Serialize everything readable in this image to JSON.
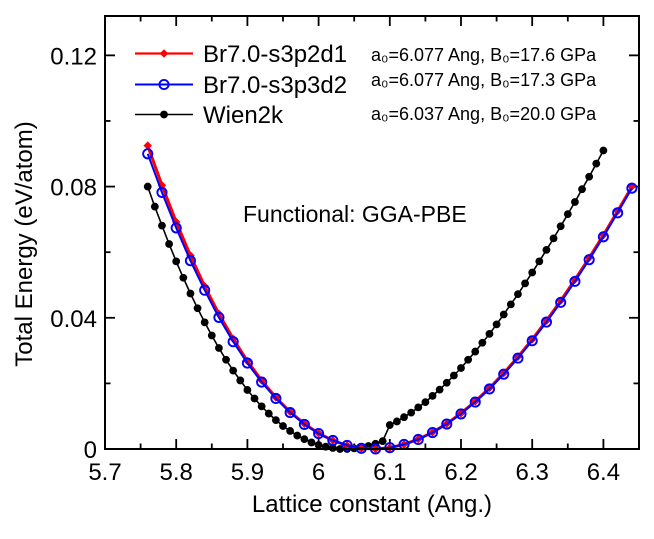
{
  "chart_data": {
    "type": "line",
    "title": "",
    "xlabel": "Lattice constant (Ang.)",
    "ylabel": "Total Energy (eV/atom)",
    "xlim": [
      5.7,
      6.45
    ],
    "ylim": [
      0,
      0.132
    ],
    "grid": false,
    "legend_position": "top-left-inside",
    "center_annotation": "Functional: GGA-PBE",
    "x_axis": {
      "major": [
        5.7,
        5.8,
        5.9,
        6.0,
        6.1,
        6.2,
        6.3,
        6.4
      ],
      "labels": [
        "5.7",
        "5.8",
        "5.9",
        "6",
        "6.1",
        "6.2",
        "6.3",
        "6.4"
      ],
      "minor": [
        5.75,
        5.85,
        5.95,
        6.05,
        6.15,
        6.25,
        6.35,
        6.45
      ]
    },
    "y_axis": {
      "major": [
        0,
        0.04,
        0.08,
        0.12
      ],
      "labels": [
        "0",
        "0.04",
        "0.08",
        "0.12"
      ],
      "minor": [
        0.02,
        0.06,
        0.1
      ]
    },
    "series": [
      {
        "name": "Br7.0-s3p2d1",
        "color": "#ff0000",
        "marker": "diamond-filled",
        "annotation": "a₀=6.077 Ang, B₀=17.6 GPa",
        "points": [
          [
            5.76,
            0.0925
          ],
          [
            5.78,
            0.0804
          ],
          [
            5.8,
            0.0692
          ],
          [
            5.82,
            0.059
          ],
          [
            5.84,
            0.0496
          ],
          [
            5.86,
            0.0412
          ],
          [
            5.88,
            0.0336
          ],
          [
            5.9,
            0.0268
          ],
          [
            5.92,
            0.0209
          ],
          [
            5.94,
            0.0157
          ],
          [
            5.96,
            0.0113
          ],
          [
            5.98,
            0.0077
          ],
          [
            6.0,
            0.0048
          ],
          [
            6.02,
            0.0026
          ],
          [
            6.04,
            0.0011
          ],
          [
            6.06,
            0.0002
          ],
          [
            6.08,
            0.0
          ],
          [
            6.1,
            0.0004
          ],
          [
            6.12,
            0.0014
          ],
          [
            6.14,
            0.003
          ],
          [
            6.16,
            0.0051
          ],
          [
            6.18,
            0.0077
          ],
          [
            6.2,
            0.0109
          ],
          [
            6.22,
            0.0145
          ],
          [
            6.24,
            0.0186
          ],
          [
            6.26,
            0.0231
          ],
          [
            6.28,
            0.0281
          ],
          [
            6.3,
            0.0334
          ],
          [
            6.32,
            0.0391
          ],
          [
            6.34,
            0.0452
          ],
          [
            6.36,
            0.0516
          ],
          [
            6.38,
            0.0583
          ],
          [
            6.4,
            0.0652
          ],
          [
            6.42,
            0.0725
          ],
          [
            6.44,
            0.08
          ]
        ]
      },
      {
        "name": "Br7.0-s3p3d2",
        "color": "#0000ff",
        "marker": "circle-open",
        "annotation": "a₀=6.077 Ang, B₀=17.3 GPa",
        "points": [
          [
            5.76,
            0.09
          ],
          [
            5.78,
            0.0782
          ],
          [
            5.8,
            0.0674
          ],
          [
            5.82,
            0.0574
          ],
          [
            5.84,
            0.0484
          ],
          [
            5.86,
            0.0401
          ],
          [
            5.88,
            0.0327
          ],
          [
            5.9,
            0.0262
          ],
          [
            5.92,
            0.0204
          ],
          [
            5.94,
            0.0154
          ],
          [
            5.96,
            0.0111
          ],
          [
            5.98,
            0.0075
          ],
          [
            6.0,
            0.0047
          ],
          [
            6.02,
            0.0026
          ],
          [
            6.04,
            0.0011
          ],
          [
            6.06,
            0.0002
          ],
          [
            6.08,
            0.0
          ],
          [
            6.1,
            0.0004
          ],
          [
            6.12,
            0.0014
          ],
          [
            6.14,
            0.0029
          ],
          [
            6.16,
            0.005
          ],
          [
            6.18,
            0.0076
          ],
          [
            6.2,
            0.0107
          ],
          [
            6.22,
            0.0143
          ],
          [
            6.24,
            0.0183
          ],
          [
            6.26,
            0.0228
          ],
          [
            6.28,
            0.0277
          ],
          [
            6.3,
            0.033
          ],
          [
            6.32,
            0.0387
          ],
          [
            6.34,
            0.0447
          ],
          [
            6.36,
            0.0511
          ],
          [
            6.38,
            0.0577
          ],
          [
            6.4,
            0.0647
          ],
          [
            6.42,
            0.072
          ],
          [
            6.44,
            0.0795
          ]
        ]
      },
      {
        "name": "Wien2k",
        "color": "#000000",
        "marker": "circle-filled",
        "annotation": "a₀=6.037 Ang, B₀=20.0 GPa",
        "points": [
          [
            5.76,
            0.08
          ],
          [
            5.77,
            0.0739
          ],
          [
            5.78,
            0.0681
          ],
          [
            5.79,
            0.0625
          ],
          [
            5.8,
            0.0572
          ],
          [
            5.81,
            0.0522
          ],
          [
            5.82,
            0.0474
          ],
          [
            5.83,
            0.0429
          ],
          [
            5.84,
            0.0386
          ],
          [
            5.85,
            0.0346
          ],
          [
            5.86,
            0.0308
          ],
          [
            5.87,
            0.0272
          ],
          [
            5.88,
            0.0239
          ],
          [
            5.89,
            0.0209
          ],
          [
            5.9,
            0.018
          ],
          [
            5.91,
            0.0154
          ],
          [
            5.92,
            0.013
          ],
          [
            5.93,
            0.0108
          ],
          [
            5.94,
            0.0088
          ],
          [
            5.95,
            0.007
          ],
          [
            5.96,
            0.0055
          ],
          [
            5.97,
            0.0041
          ],
          [
            5.98,
            0.003
          ],
          [
            5.99,
            0.002
          ],
          [
            6.0,
            0.0012
          ],
          [
            6.01,
            0.0007
          ],
          [
            6.02,
            0.0003
          ],
          [
            6.03,
            0.0
          ],
          [
            6.04,
            0.0
          ],
          [
            6.05,
            0.0002
          ],
          [
            6.06,
            0.0005
          ],
          [
            6.07,
            0.0009
          ],
          [
            6.08,
            0.0016
          ],
          [
            6.09,
            0.0024
          ],
          [
            6.1,
            0.0073
          ],
          [
            6.11,
            0.0084
          ],
          [
            6.12,
            0.0097
          ],
          [
            6.13,
            0.0111
          ],
          [
            6.14,
            0.0127
          ],
          [
            6.15,
            0.0143
          ],
          [
            6.16,
            0.0162
          ],
          [
            6.17,
            0.0181
          ],
          [
            6.18,
            0.0202
          ],
          [
            6.19,
            0.0224
          ],
          [
            6.2,
            0.0247
          ],
          [
            6.21,
            0.0272
          ],
          [
            6.22,
            0.0297
          ],
          [
            6.23,
            0.0324
          ],
          [
            6.24,
            0.0351
          ],
          [
            6.25,
            0.038
          ],
          [
            6.26,
            0.041
          ],
          [
            6.27,
            0.0441
          ],
          [
            6.28,
            0.0472
          ],
          [
            6.29,
            0.0505
          ],
          [
            6.3,
            0.0538
          ],
          [
            6.31,
            0.0572
          ],
          [
            6.32,
            0.0607
          ],
          [
            6.33,
            0.0642
          ],
          [
            6.34,
            0.0679
          ],
          [
            6.35,
            0.0716
          ],
          [
            6.36,
            0.0753
          ],
          [
            6.37,
            0.0792
          ],
          [
            6.38,
            0.083
          ],
          [
            6.39,
            0.087
          ],
          [
            6.4,
            0.091
          ]
        ]
      }
    ]
  }
}
